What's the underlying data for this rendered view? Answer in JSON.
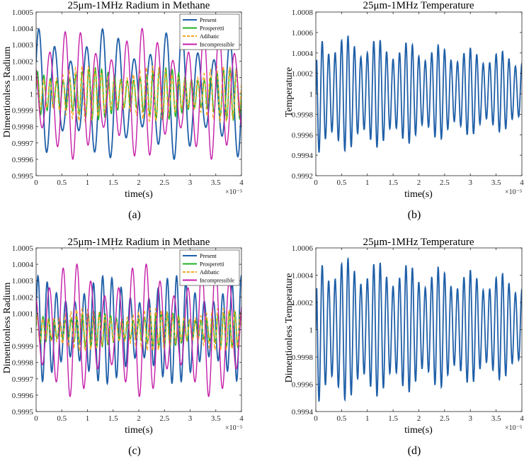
{
  "chart_data": [
    {
      "panel": "(a)",
      "type": "line",
      "title": "25μm-1MHz Radium in Methane",
      "xlabel": "time(s)",
      "ylabel": "Dimentionless Radium",
      "x_exponent": "×10⁻⁵",
      "xlim": [
        0,
        4
      ],
      "ylim": [
        0.9995,
        1.0005
      ],
      "xticks": [
        "0",
        "0.5",
        "1",
        "1.5",
        "2",
        "2.5",
        "3",
        "3.5",
        "4"
      ],
      "yticks": [
        "0.9995",
        "0.9996",
        "0.9997",
        "0.9998",
        "0.9999",
        "1",
        "1.0001",
        "1.0002",
        "1.0003",
        "1.0004",
        "1.0005"
      ],
      "legend": [
        "Present",
        "Prosperetti",
        "Adibatic",
        "Incompressible"
      ],
      "legend_location": "top-right",
      "series": [
        {
          "name": "Present",
          "color": "#1f5fa8",
          "style": "solid",
          "amplitude": 0.0004,
          "period": 0.31,
          "phase": 0.5
        },
        {
          "name": "Prosperetti",
          "color": "#22b022",
          "style": "solid",
          "amplitude": 0.00016,
          "period": 0.125,
          "phase": 0.2
        },
        {
          "name": "Adibatic",
          "color": "#f5a623",
          "style": "dashed",
          "amplitude": 0.00017,
          "period": 0.125,
          "phase": 0.6
        },
        {
          "name": "Incompressible",
          "color": "#c41ea8",
          "style": "solid",
          "amplitude": 0.0004,
          "period": 0.3,
          "phase": 2.3
        }
      ]
    },
    {
      "panel": "(b)",
      "type": "line",
      "title": "25μm-1MHz Temperature",
      "xlabel": "time(s)",
      "ylabel": "Temperature",
      "x_exponent": "×10⁻⁵",
      "xlim": [
        0,
        4
      ],
      "ylim": [
        0.9992,
        1.0008
      ],
      "xticks": [
        "0",
        "0.5",
        "1",
        "1.5",
        "2",
        "2.5",
        "3",
        "3.5",
        "4"
      ],
      "yticks": [
        "0.9992",
        "0.9994",
        "0.9996",
        "0.9998",
        "1",
        "1.0002",
        "1.0004",
        "1.0006",
        "1.0008"
      ],
      "series": [
        {
          "name": "Temperature",
          "color": "#1f5fa8",
          "style": "solid",
          "peaks_start": 1.0006,
          "peaks_end": 1.0004,
          "troughs_start": 0.9994,
          "troughs_end": 0.99965,
          "period": 0.125
        }
      ]
    },
    {
      "panel": "(c)",
      "type": "line",
      "title": "25μm-1MHz Radium in Methane",
      "xlabel": "time(s)",
      "ylabel": "Dimentionless Radium",
      "x_exponent": "×10⁻⁵",
      "xlim": [
        0,
        4
      ],
      "ylim": [
        0.9995,
        1.0005
      ],
      "xticks": [
        "0",
        "0.5",
        "1",
        "1.5",
        "2",
        "2.5",
        "3",
        "3.5",
        "4"
      ],
      "yticks": [
        "0.9995",
        "0.9996",
        "0.9997",
        "0.9998",
        "0.9999",
        "1",
        "1.0001",
        "1.0002",
        "1.0003",
        "1.0004",
        "1.0005"
      ],
      "legend": [
        "Present",
        "Prosperetti",
        "Adibatic",
        "Incompressible"
      ],
      "legend_location": "top-right",
      "series": [
        {
          "name": "Present",
          "color": "#1f5fa8",
          "style": "solid",
          "amplitude": 0.00033,
          "period": 0.18,
          "phase": 0.3
        },
        {
          "name": "Prosperetti",
          "color": "#22b022",
          "style": "solid",
          "amplitude": 0.00011,
          "period": 0.11,
          "phase": 0.2
        },
        {
          "name": "Adibatic",
          "color": "#f5a623",
          "style": "dashed",
          "amplitude": 0.00013,
          "period": 0.11,
          "phase": 0.6
        },
        {
          "name": "Incompressible",
          "color": "#c41ea8",
          "style": "solid",
          "amplitude": 0.00041,
          "period": 0.27,
          "phase": 1.9
        }
      ]
    },
    {
      "panel": "(d)",
      "type": "line",
      "title": "25μm-1MHz Temperature",
      "xlabel": "time(s)",
      "ylabel": "Dimentionless Temperature",
      "x_exponent": "×10⁻⁵",
      "xlim": [
        0,
        4
      ],
      "ylim": [
        0.9994,
        1.0006
      ],
      "xticks": [
        "0",
        "0.5",
        "1",
        "1.5",
        "2",
        "2.5",
        "3",
        "3.5",
        "4"
      ],
      "yticks": [
        "0.9994",
        "0.9996",
        "0.9998",
        "1",
        "1.0002",
        "1.0004",
        "1.0006"
      ],
      "series": [
        {
          "name": "Temperature",
          "color": "#1f5fa8",
          "style": "solid",
          "peaks_start": 1.00055,
          "peaks_end": 1.0004,
          "troughs_start": 0.99945,
          "troughs_end": 0.99965,
          "period": 0.125
        }
      ]
    }
  ]
}
